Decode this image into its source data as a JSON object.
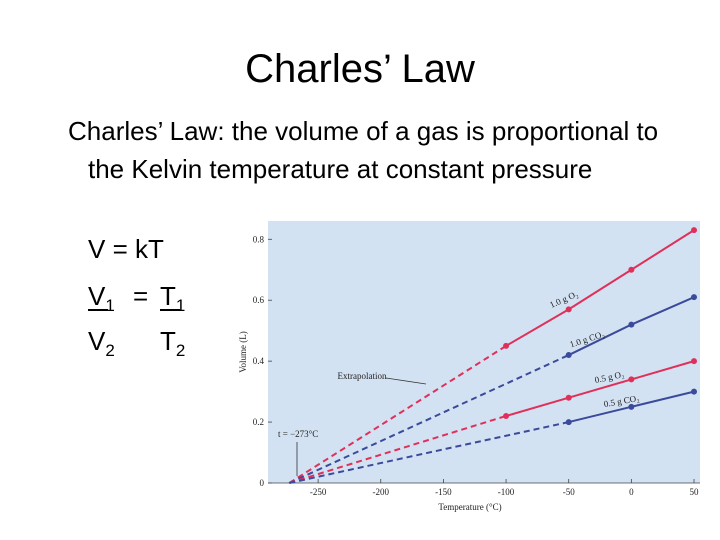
{
  "slide": {
    "title": "Charles’ Law",
    "body": "Charles’ Law: the volume of a gas is proportional to the Kelvin temperature at constant pressure",
    "equation": "V = kT",
    "ratio": {
      "lhs_top": "V",
      "lhs_top_sub": "1",
      "equals": "=",
      "rhs_top": "T",
      "rhs_top_sub": "1",
      "lhs_bottom": "V",
      "lhs_bottom_sub": "2",
      "rhs_bottom": "T",
      "rhs_bottom_sub": "2"
    }
  },
  "chart_data": {
    "type": "line",
    "x_label": "Temperature (°C)",
    "y_label": "Volume (L)",
    "xlim": [
      -290,
      50
    ],
    "xticks": [
      -250,
      -200,
      -150,
      -100,
      -50,
      0,
      50
    ],
    "ylim": [
      0,
      0.86
    ],
    "yticks": [
      0,
      0.2,
      0.4,
      0.6,
      0.8
    ],
    "annotations": [
      "Extrapolation",
      "t = −273°C"
    ],
    "series": [
      {
        "name": "1.0 g O₂",
        "color": "#e0305a",
        "x": [
          -273,
          -100,
          -50,
          0,
          50
        ],
        "values": [
          0,
          0.45,
          0.57,
          0.7,
          0.83
        ]
      },
      {
        "name": "1.0 g CO₂",
        "color": "#3b4a9a",
        "x": [
          -273,
          -50,
          0,
          50
        ],
        "values": [
          0,
          0.42,
          0.52,
          0.61
        ]
      },
      {
        "name": "0.5 g O₂",
        "color": "#e0305a",
        "x": [
          -273,
          -100,
          -50,
          0,
          50
        ],
        "values": [
          0,
          0.22,
          0.28,
          0.34,
          0.4
        ]
      },
      {
        "name": "0.5 g CO₂",
        "color": "#3b4a9a",
        "x": [
          -273,
          -50,
          0,
          50
        ],
        "values": [
          0,
          0.2,
          0.25,
          0.3
        ]
      }
    ]
  }
}
